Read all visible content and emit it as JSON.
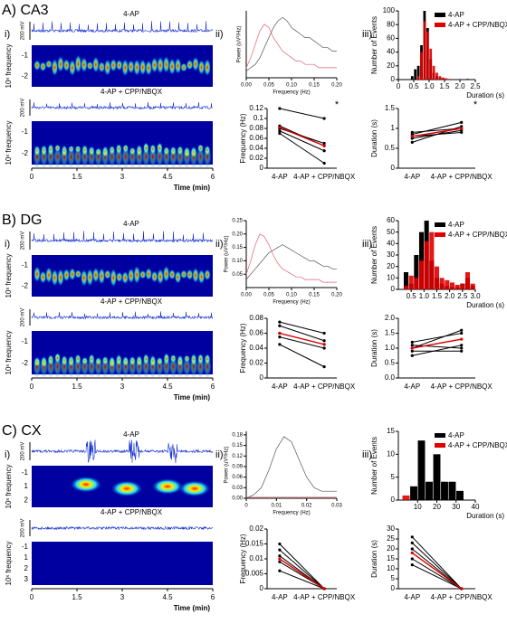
{
  "panels": [
    {
      "label": "A) CA3",
      "sub_labels": [
        "i)",
        "ii)",
        "iii)"
      ],
      "traces": {
        "labels": [
          "4-AP",
          "4-AP + CPP/NBQX"
        ],
        "scale": "200 mV",
        "spectro_ylabel": "10ˣ frequency",
        "spectro_yticks": [
          [
            -1,
            -2
          ],
          [
            -1,
            -2
          ]
        ],
        "xticks": [
          0,
          1.5,
          3,
          4.5,
          6
        ],
        "xlabel": "Time (min)"
      }
    },
    {
      "label": "B) DG",
      "sub_labels": [
        "i)",
        "ii)",
        "iii)"
      ],
      "traces": {
        "labels": [
          "4-AP",
          "4-AP + CPP/NBQX"
        ],
        "scale": "200 mV",
        "spectro_ylabel": "10ˣ frequency",
        "spectro_yticks": [
          [
            -1,
            -2
          ],
          [
            -1,
            -2
          ]
        ],
        "xticks": [
          0,
          1.5,
          3,
          4.5,
          6
        ],
        "xlabel": "Time (min)"
      }
    },
    {
      "label": "C) CX",
      "sub_labels": [
        "i)",
        "ii)",
        "iii)"
      ],
      "traces": {
        "labels": [
          "4-AP",
          "4-AP + CPP/NBQX"
        ],
        "scale": "200 mV",
        "spectro_ylabel": "10ˣ frequency",
        "spectro_yticks": [
          [
            -1,
            1,
            2
          ],
          [
            -1,
            1,
            2,
            3
          ]
        ],
        "xticks": [
          0,
          1.5,
          3,
          4.5,
          6
        ],
        "xlabel": "Time (min)"
      }
    }
  ],
  "chart_data": [
    {
      "type": "line",
      "xlabel": "Frequency (Hz)",
      "ylabel": "Power (uV²/Hz)",
      "x": [
        0,
        0.01,
        0.02,
        0.03,
        0.04,
        0.05,
        0.06,
        0.07,
        0.08,
        0.09,
        0.1,
        0.11,
        0.12,
        0.13,
        0.14,
        0.15,
        0.16,
        0.17,
        0.18,
        0.19,
        0.2
      ],
      "xlim": [
        0,
        0.2
      ],
      "xticks": [
        {
          "value": 0,
          "label": "0.00"
        },
        0.05,
        {
          "value": 0.1,
          "label": "0.10"
        },
        0.15,
        {
          "value": 0.2,
          "label": "0.20"
        }
      ],
      "ylim": [
        0,
        0.2
      ],
      "series": [
        {
          "color": "#555555",
          "values": [
            0.02,
            0.03,
            0.04,
            0.06,
            0.09,
            0.12,
            0.15,
            0.17,
            0.18,
            0.17,
            0.15,
            0.14,
            0.13,
            0.12,
            0.12,
            0.11,
            0.1,
            0.09,
            0.09,
            0.08,
            0.08
          ]
        },
        {
          "color": "#e06070",
          "values": [
            0.03,
            0.06,
            0.1,
            0.14,
            0.16,
            0.15,
            0.12,
            0.1,
            0.08,
            0.07,
            0.06,
            0.05,
            0.05,
            0.04,
            0.04,
            0.04,
            0.03,
            0.03,
            0.03,
            0.03,
            0.03
          ]
        }
      ]
    },
    {
      "type": "histogram",
      "xlabel": "Duration (s)",
      "ylabel": "Number of Events",
      "bins": [
        0.4,
        0.5,
        0.6,
        0.7,
        0.8,
        0.9,
        1.0,
        1.1,
        1.2,
        1.3,
        1.4,
        1.5,
        1.6,
        1.7,
        1.8,
        1.9,
        2.0,
        2.1,
        2.2,
        2.3,
        2.4
      ],
      "xlim": [
        0,
        2.5
      ],
      "xticks": [
        0,
        0.5,
        {
          "value": 1,
          "label": "1.0"
        },
        1.5,
        {
          "value": 2,
          "label": "2.0"
        },
        2.5
      ],
      "ylim": [
        0,
        100
      ],
      "yticks": [
        0,
        20,
        40,
        60,
        80,
        100
      ],
      "series": [
        {
          "name": "4-AP",
          "color": "#000000",
          "values": [
            5,
            15,
            20,
            50,
            100,
            75,
            30,
            10,
            5,
            3,
            2,
            0,
            0,
            0,
            0,
            0,
            0,
            0,
            1,
            0
          ]
        },
        {
          "name": "4-AP + CPP/NBQX",
          "color": "#e00000",
          "values": [
            0,
            0,
            5,
            40,
            85,
            70,
            45,
            20,
            10,
            5,
            3,
            2,
            1,
            0,
            0,
            0,
            0,
            0,
            0,
            0
          ]
        }
      ]
    },
    {
      "type": "line",
      "ylabel": "Frequency (Hz)",
      "categories": [
        "4-AP",
        "4-AP + CPP/NBQX"
      ],
      "annotation": "*",
      "ylim": [
        0,
        0.12
      ],
      "yticks": [
        0,
        0.02,
        0.04,
        0.06,
        0.08,
        0.1,
        0.12
      ],
      "series": [
        {
          "color": "#000000",
          "values": [
            0.12,
            0.1
          ]
        },
        {
          "color": "#000000",
          "values": [
            0.08,
            0.05
          ]
        },
        {
          "color": "#000000",
          "values": [
            0.075,
            0.035
          ]
        },
        {
          "color": "#000000",
          "values": [
            0.07,
            0.01
          ]
        },
        {
          "color": "#000000",
          "values": [
            0.085,
            0.045
          ]
        },
        {
          "color": "#e00000",
          "values": [
            0.082,
            0.045
          ]
        }
      ]
    },
    {
      "type": "line",
      "ylabel": "Duration (s)",
      "categories": [
        "4-AP",
        "4-AP + CPP/NBQX"
      ],
      "annotation": "*",
      "ylim": [
        0,
        1.5
      ],
      "yticks": [
        0,
        0.5,
        1,
        1.5
      ],
      "series": [
        {
          "color": "#000000",
          "values": [
            0.9,
            1.0
          ]
        },
        {
          "color": "#000000",
          "values": [
            0.85,
            1.15
          ]
        },
        {
          "color": "#000000",
          "values": [
            0.75,
            0.95
          ]
        },
        {
          "color": "#000000",
          "values": [
            0.65,
            1.05
          ]
        },
        {
          "color": "#000000",
          "values": [
            0.8,
            0.9
          ]
        },
        {
          "color": "#e00000",
          "values": [
            0.8,
            1.0
          ]
        }
      ]
    },
    {
      "type": "line",
      "xlabel": "Frequency (Hz)",
      "ylabel": "Power (uV²/Hz)",
      "x": [
        0,
        0.01,
        0.02,
        0.03,
        0.04,
        0.05,
        0.06,
        0.07,
        0.08,
        0.09,
        0.1,
        0.11,
        0.12,
        0.13,
        0.14,
        0.15,
        0.16,
        0.17,
        0.18,
        0.19,
        0.2
      ],
      "xlim": [
        0,
        0.2
      ],
      "xticks": [
        {
          "value": 0,
          "label": "0.00"
        },
        0.05,
        {
          "value": 0.1,
          "label": "0.10"
        },
        0.15,
        {
          "value": 0.2,
          "label": "0.20"
        }
      ],
      "ylim": [
        0,
        0.25
      ],
      "yticks": [
        0.05,
        {
          "value": 0.1,
          "label": "0.10"
        },
        0.15,
        {
          "value": 0.2,
          "label": "0.20"
        },
        0.25
      ],
      "series": [
        {
          "color": "#555555",
          "values": [
            0.03,
            0.05,
            0.07,
            0.09,
            0.11,
            0.13,
            0.14,
            0.15,
            0.16,
            0.15,
            0.14,
            0.13,
            0.12,
            0.11,
            0.1,
            0.1,
            0.09,
            0.08,
            0.08,
            0.07,
            0.07
          ]
        },
        {
          "color": "#e06070",
          "values": [
            0.05,
            0.1,
            0.16,
            0.2,
            0.19,
            0.16,
            0.12,
            0.09,
            0.07,
            0.06,
            0.05,
            0.04,
            0.04,
            0.03,
            0.03,
            0.03,
            0.03,
            0.02,
            0.02,
            0.02,
            0.02
          ]
        }
      ]
    },
    {
      "type": "histogram",
      "xlabel": "Duration (s)",
      "ylabel": "Number of Events",
      "bins": [
        0.2,
        0.4,
        0.6,
        0.8,
        1.0,
        1.2,
        1.4,
        1.6,
        1.8,
        2.0,
        2.2,
        2.4,
        2.6,
        2.8,
        3.0
      ],
      "xlim": [
        0,
        3
      ],
      "xticks": [
        0.5,
        {
          "value": 1,
          "label": "1.0"
        },
        1.5,
        {
          "value": 2,
          "label": "2.0"
        },
        2.5,
        {
          "value": 3,
          "label": "3.0"
        }
      ],
      "ylim": [
        0,
        60
      ],
      "yticks": [
        0,
        10,
        20,
        30,
        40,
        50,
        60
      ],
      "series": [
        {
          "name": "4-AP",
          "color": "#000000",
          "values": [
            15,
            5,
            30,
            50,
            60,
            25,
            10,
            5,
            3,
            2,
            2,
            5,
            10,
            3
          ]
        },
        {
          "name": "4-AP + CPP/NBQX",
          "color": "#e00000",
          "values": [
            3,
            12,
            10,
            25,
            42,
            50,
            20,
            10,
            8,
            6,
            4,
            5,
            15,
            5
          ]
        }
      ]
    },
    {
      "type": "line",
      "ylabel": "Frequency (Hz)",
      "categories": [
        "4-AP",
        "4-AP + CPP/NBQX"
      ],
      "ylim": [
        0,
        0.08
      ],
      "yticks": [
        0,
        0.02,
        0.04,
        0.06,
        0.08
      ],
      "series": [
        {
          "color": "#000000",
          "values": [
            0.075,
            0.06
          ]
        },
        {
          "color": "#000000",
          "values": [
            0.07,
            0.05
          ]
        },
        {
          "color": "#000000",
          "values": [
            0.06,
            0.045
          ]
        },
        {
          "color": "#000000",
          "values": [
            0.055,
            0.04
          ]
        },
        {
          "color": "#000000",
          "values": [
            0.045,
            0.015
          ]
        },
        {
          "color": "#e00000",
          "values": [
            0.06,
            0.045
          ]
        }
      ]
    },
    {
      "type": "line",
      "ylabel": "Duration (s)",
      "categories": [
        "4-AP",
        "4-AP + CPP/NBQX"
      ],
      "ylim": [
        0,
        2
      ],
      "yticks": [
        {
          "value": 0,
          "label": "0.0"
        },
        0.5,
        {
          "value": 1,
          "label": "1.0"
        },
        1.5,
        {
          "value": 2,
          "label": "2.0"
        }
      ],
      "series": [
        {
          "color": "#000000",
          "values": [
            1.2,
            1.5
          ]
        },
        {
          "color": "#000000",
          "values": [
            1.0,
            1.6
          ]
        },
        {
          "color": "#000000",
          "values": [
            0.9,
            0.9
          ]
        },
        {
          "color": "#000000",
          "values": [
            0.75,
            1.1
          ]
        },
        {
          "color": "#000000",
          "values": [
            1.1,
            1.0
          ]
        },
        {
          "color": "#e00000",
          "values": [
            1.0,
            1.3
          ]
        }
      ]
    },
    {
      "type": "line",
      "xlabel": "Frequency (Hz)",
      "ylabel": "Power (uV²/Hz)",
      "x": [
        0,
        0.0025,
        0.005,
        0.0075,
        0.01,
        0.0125,
        0.015,
        0.0175,
        0.02,
        0.0225,
        0.025,
        0.0275,
        0.03
      ],
      "xlim": [
        0,
        0.03
      ],
      "xticks": [
        0,
        0.01,
        0.02,
        0.03
      ],
      "ylim": [
        0,
        0.19
      ],
      "yticks": [
        {
          "value": 0,
          "label": "0.00"
        },
        0.03,
        0.06,
        0.09,
        0.12,
        0.15,
        0.18
      ],
      "series": [
        {
          "color": "#555555",
          "values": [
            0.0,
            0.01,
            0.03,
            0.08,
            0.14,
            0.175,
            0.16,
            0.11,
            0.06,
            0.03,
            0.02,
            0.02,
            0.02
          ]
        },
        {
          "color": "#e06070",
          "values": [
            0.003,
            0.003,
            0.003,
            0.003,
            0.003,
            0.003,
            0.003,
            0.003,
            0.003,
            0.003,
            0.003,
            0.003,
            0.003
          ]
        }
      ]
    },
    {
      "type": "histogram",
      "xlabel": "Duration (s)",
      "ylabel": "Number of Events",
      "bins": [
        2,
        6,
        10,
        14,
        18,
        22,
        26,
        30,
        34
      ],
      "xlim": [
        0,
        40
      ],
      "xticks": [
        10,
        20,
        30,
        40
      ],
      "ylim": [
        0,
        15
      ],
      "yticks": [
        0,
        5,
        10,
        15
      ],
      "series": [
        {
          "name": "4-AP",
          "color": "#000000",
          "values": [
            0,
            3,
            13,
            4,
            10,
            4,
            4,
            2
          ]
        },
        {
          "name": "4-AP + CPP/NBQX",
          "color": "#e00000",
          "values": [
            1,
            0,
            0,
            0,
            0,
            0,
            0,
            0
          ]
        }
      ]
    },
    {
      "type": "line",
      "ylabel": "Frequency (Hz)",
      "categories": [
        "4-AP",
        "4-AP + CPP/NBQX"
      ],
      "ylim": [
        0,
        0.02
      ],
      "yticks": [
        0,
        0.005,
        0.01,
        0.015,
        0.02
      ],
      "series": [
        {
          "color": "#000000",
          "values": [
            0.015,
            0
          ]
        },
        {
          "color": "#000000",
          "values": [
            0.013,
            0
          ]
        },
        {
          "color": "#000000",
          "values": [
            0.011,
            0
          ]
        },
        {
          "color": "#000000",
          "values": [
            0.009,
            0
          ]
        },
        {
          "color": "#000000",
          "values": [
            0.006,
            0
          ]
        },
        {
          "color": "#e00000",
          "values": [
            0.01,
            0
          ]
        }
      ]
    },
    {
      "type": "line",
      "ylabel": "Duration (s)",
      "categories": [
        "4-AP",
        "4-AP + CPP/NBQX"
      ],
      "ylim": [
        0,
        30
      ],
      "yticks": [
        0,
        5,
        10,
        15,
        20,
        25,
        30
      ],
      "series": [
        {
          "color": "#000000",
          "values": [
            26,
            0
          ]
        },
        {
          "color": "#000000",
          "values": [
            23,
            0
          ]
        },
        {
          "color": "#000000",
          "values": [
            20,
            0
          ]
        },
        {
          "color": "#000000",
          "values": [
            15,
            0
          ]
        },
        {
          "color": "#000000",
          "values": [
            12,
            0
          ]
        },
        {
          "color": "#e00000",
          "values": [
            18,
            0
          ]
        }
      ]
    }
  ]
}
